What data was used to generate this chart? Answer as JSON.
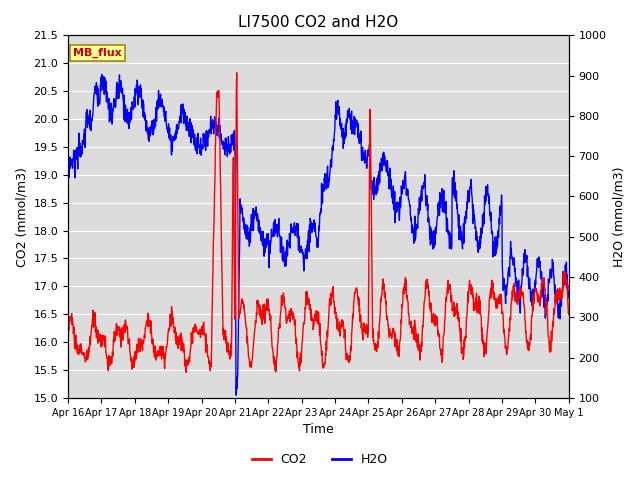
{
  "title": "LI7500 CO2 and H2O",
  "xlabel": "Time",
  "ylabel_left": "CO2 (mmol/m3)",
  "ylabel_right": "H2O (mmol/m3)",
  "ylim_left": [
    15.0,
    21.5
  ],
  "ylim_right": [
    100,
    1000
  ],
  "yticks_left": [
    15.0,
    15.5,
    16.0,
    16.5,
    17.0,
    17.5,
    18.0,
    18.5,
    19.0,
    19.5,
    20.0,
    20.5,
    21.0,
    21.5
  ],
  "yticks_right": [
    100,
    200,
    300,
    400,
    500,
    600,
    700,
    800,
    900,
    1000
  ],
  "xtick_labels": [
    "Apr 16",
    "Apr 17",
    "Apr 18",
    "Apr 19",
    "Apr 20",
    "Apr 21",
    "Apr 22",
    "Apr 23",
    "Apr 24",
    "Apr 25",
    "Apr 26",
    "Apr 27",
    "Apr 28",
    "Apr 29",
    "Apr 30",
    "May 1"
  ],
  "legend_label_co2": "CO2",
  "legend_label_h2o": "H2O",
  "co2_color": "#FF0000",
  "h2o_color": "#0000FF",
  "background_color": "#DCDCDC",
  "annotation_text": "MB_flux",
  "annotation_bg": "#FFFF99",
  "annotation_border": "#AA8800",
  "title_fontsize": 11,
  "axis_fontsize": 9,
  "tick_fontsize": 8,
  "linewidth": 1.0
}
